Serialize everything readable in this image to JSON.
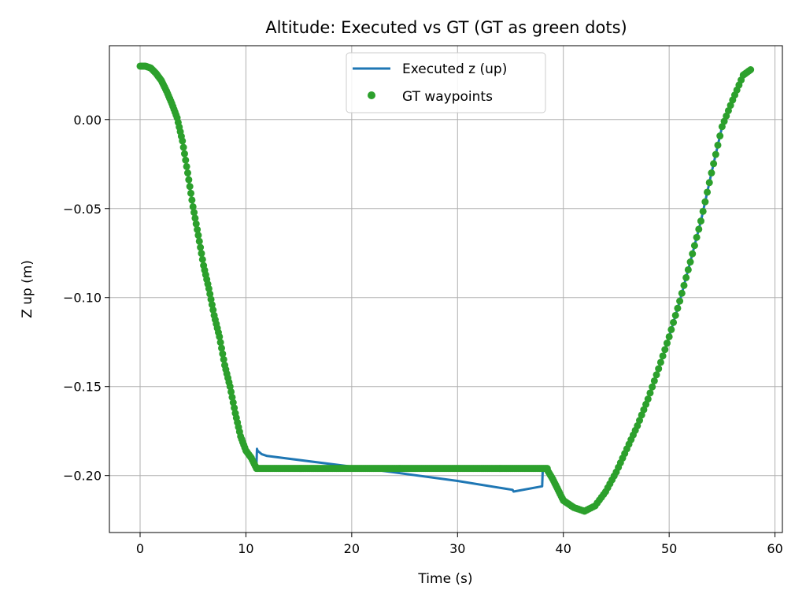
{
  "chart_data": {
    "type": "line",
    "title": "Altitude: Executed vs GT (GT as green dots)",
    "xlabel": "Time (s)",
    "ylabel": "Z up (m)",
    "xlim": [
      -2.9,
      60.7
    ],
    "ylim": [
      -0.232,
      0.0415
    ],
    "xticks": [
      0,
      10,
      20,
      30,
      40,
      50,
      60
    ],
    "xtick_labels": [
      "0",
      "10",
      "20",
      "30",
      "40",
      "50",
      "60"
    ],
    "yticks": [
      0.0,
      -0.05,
      -0.1,
      -0.15,
      -0.2
    ],
    "ytick_labels": [
      "0.00",
      "−0.05",
      "−0.10",
      "−0.15",
      "−0.20"
    ],
    "grid": true,
    "legend_position": "upper-center",
    "colors": {
      "executed": "#1f77b4",
      "gt": "#2ca02c"
    },
    "series": [
      {
        "name": "Executed z (up)",
        "style": "line",
        "x": [
          0,
          0.5,
          1.0,
          1.5,
          2.0,
          2.5,
          3.0,
          3.5,
          4.0,
          4.5,
          5.0,
          5.5,
          6.0,
          6.5,
          7.0,
          7.5,
          8.0,
          8.5,
          9.0,
          9.5,
          10.0,
          10.5,
          11.0,
          11.05,
          11.1,
          11.5,
          12.0,
          20.0,
          30.0,
          35.2,
          35.3,
          38.0,
          38.05,
          38.1,
          38.5,
          39.0,
          39.5,
          40.0,
          40.5,
          41.0,
          42.0,
          43.0,
          44.0,
          45.0,
          46.0,
          47.0,
          48.0,
          49.0,
          50.0,
          51.0,
          52.0,
          53.0,
          54.0,
          55.0,
          56.0,
          57.0,
          57.7
        ],
        "y": [
          0.03,
          0.03,
          0.029,
          0.026,
          0.022,
          0.016,
          0.009,
          0.001,
          -0.012,
          -0.03,
          -0.049,
          -0.065,
          -0.082,
          -0.095,
          -0.11,
          -0.122,
          -0.138,
          -0.15,
          -0.165,
          -0.178,
          -0.186,
          -0.19,
          -0.193,
          -0.185,
          -0.186,
          -0.188,
          -0.189,
          -0.195,
          -0.203,
          -0.208,
          -0.209,
          -0.206,
          -0.197,
          -0.197,
          -0.197,
          -0.202,
          -0.208,
          -0.214,
          -0.216,
          -0.218,
          -0.22,
          -0.217,
          -0.209,
          -0.198,
          -0.185,
          -0.172,
          -0.157,
          -0.14,
          -0.122,
          -0.102,
          -0.08,
          -0.057,
          -0.03,
          -0.004,
          0.011,
          0.025,
          0.028
        ]
      },
      {
        "name": "GT waypoints",
        "style": "scatter",
        "x": [
          0,
          0.5,
          1.0,
          1.5,
          2.0,
          2.5,
          3.0,
          3.5,
          4.0,
          4.5,
          5.0,
          5.5,
          6.0,
          6.5,
          7.0,
          7.5,
          8.0,
          8.5,
          9.0,
          9.5,
          10.0,
          10.5,
          11.0,
          38.5,
          39.0,
          39.5,
          40.0,
          40.5,
          41.0,
          42.0,
          43.0,
          44.0,
          45.0,
          46.0,
          47.0,
          48.0,
          49.0,
          50.0,
          51.0,
          52.0,
          53.0,
          54.0,
          55.0,
          56.0,
          57.0,
          57.7
        ],
        "y": [
          0.03,
          0.03,
          0.029,
          0.026,
          0.022,
          0.016,
          0.009,
          0.001,
          -0.012,
          -0.03,
          -0.049,
          -0.065,
          -0.082,
          -0.095,
          -0.11,
          -0.122,
          -0.138,
          -0.15,
          -0.165,
          -0.178,
          -0.186,
          -0.19,
          -0.196,
          -0.197,
          -0.202,
          -0.208,
          -0.214,
          -0.216,
          -0.218,
          -0.22,
          -0.217,
          -0.209,
          -0.198,
          -0.185,
          -0.172,
          -0.157,
          -0.14,
          -0.122,
          -0.102,
          -0.08,
          -0.057,
          -0.03,
          -0.004,
          0.011,
          0.025,
          0.028
        ],
        "flat_segment": {
          "x_start": 11.0,
          "x_end": 38.5,
          "y": -0.196
        }
      }
    ]
  }
}
